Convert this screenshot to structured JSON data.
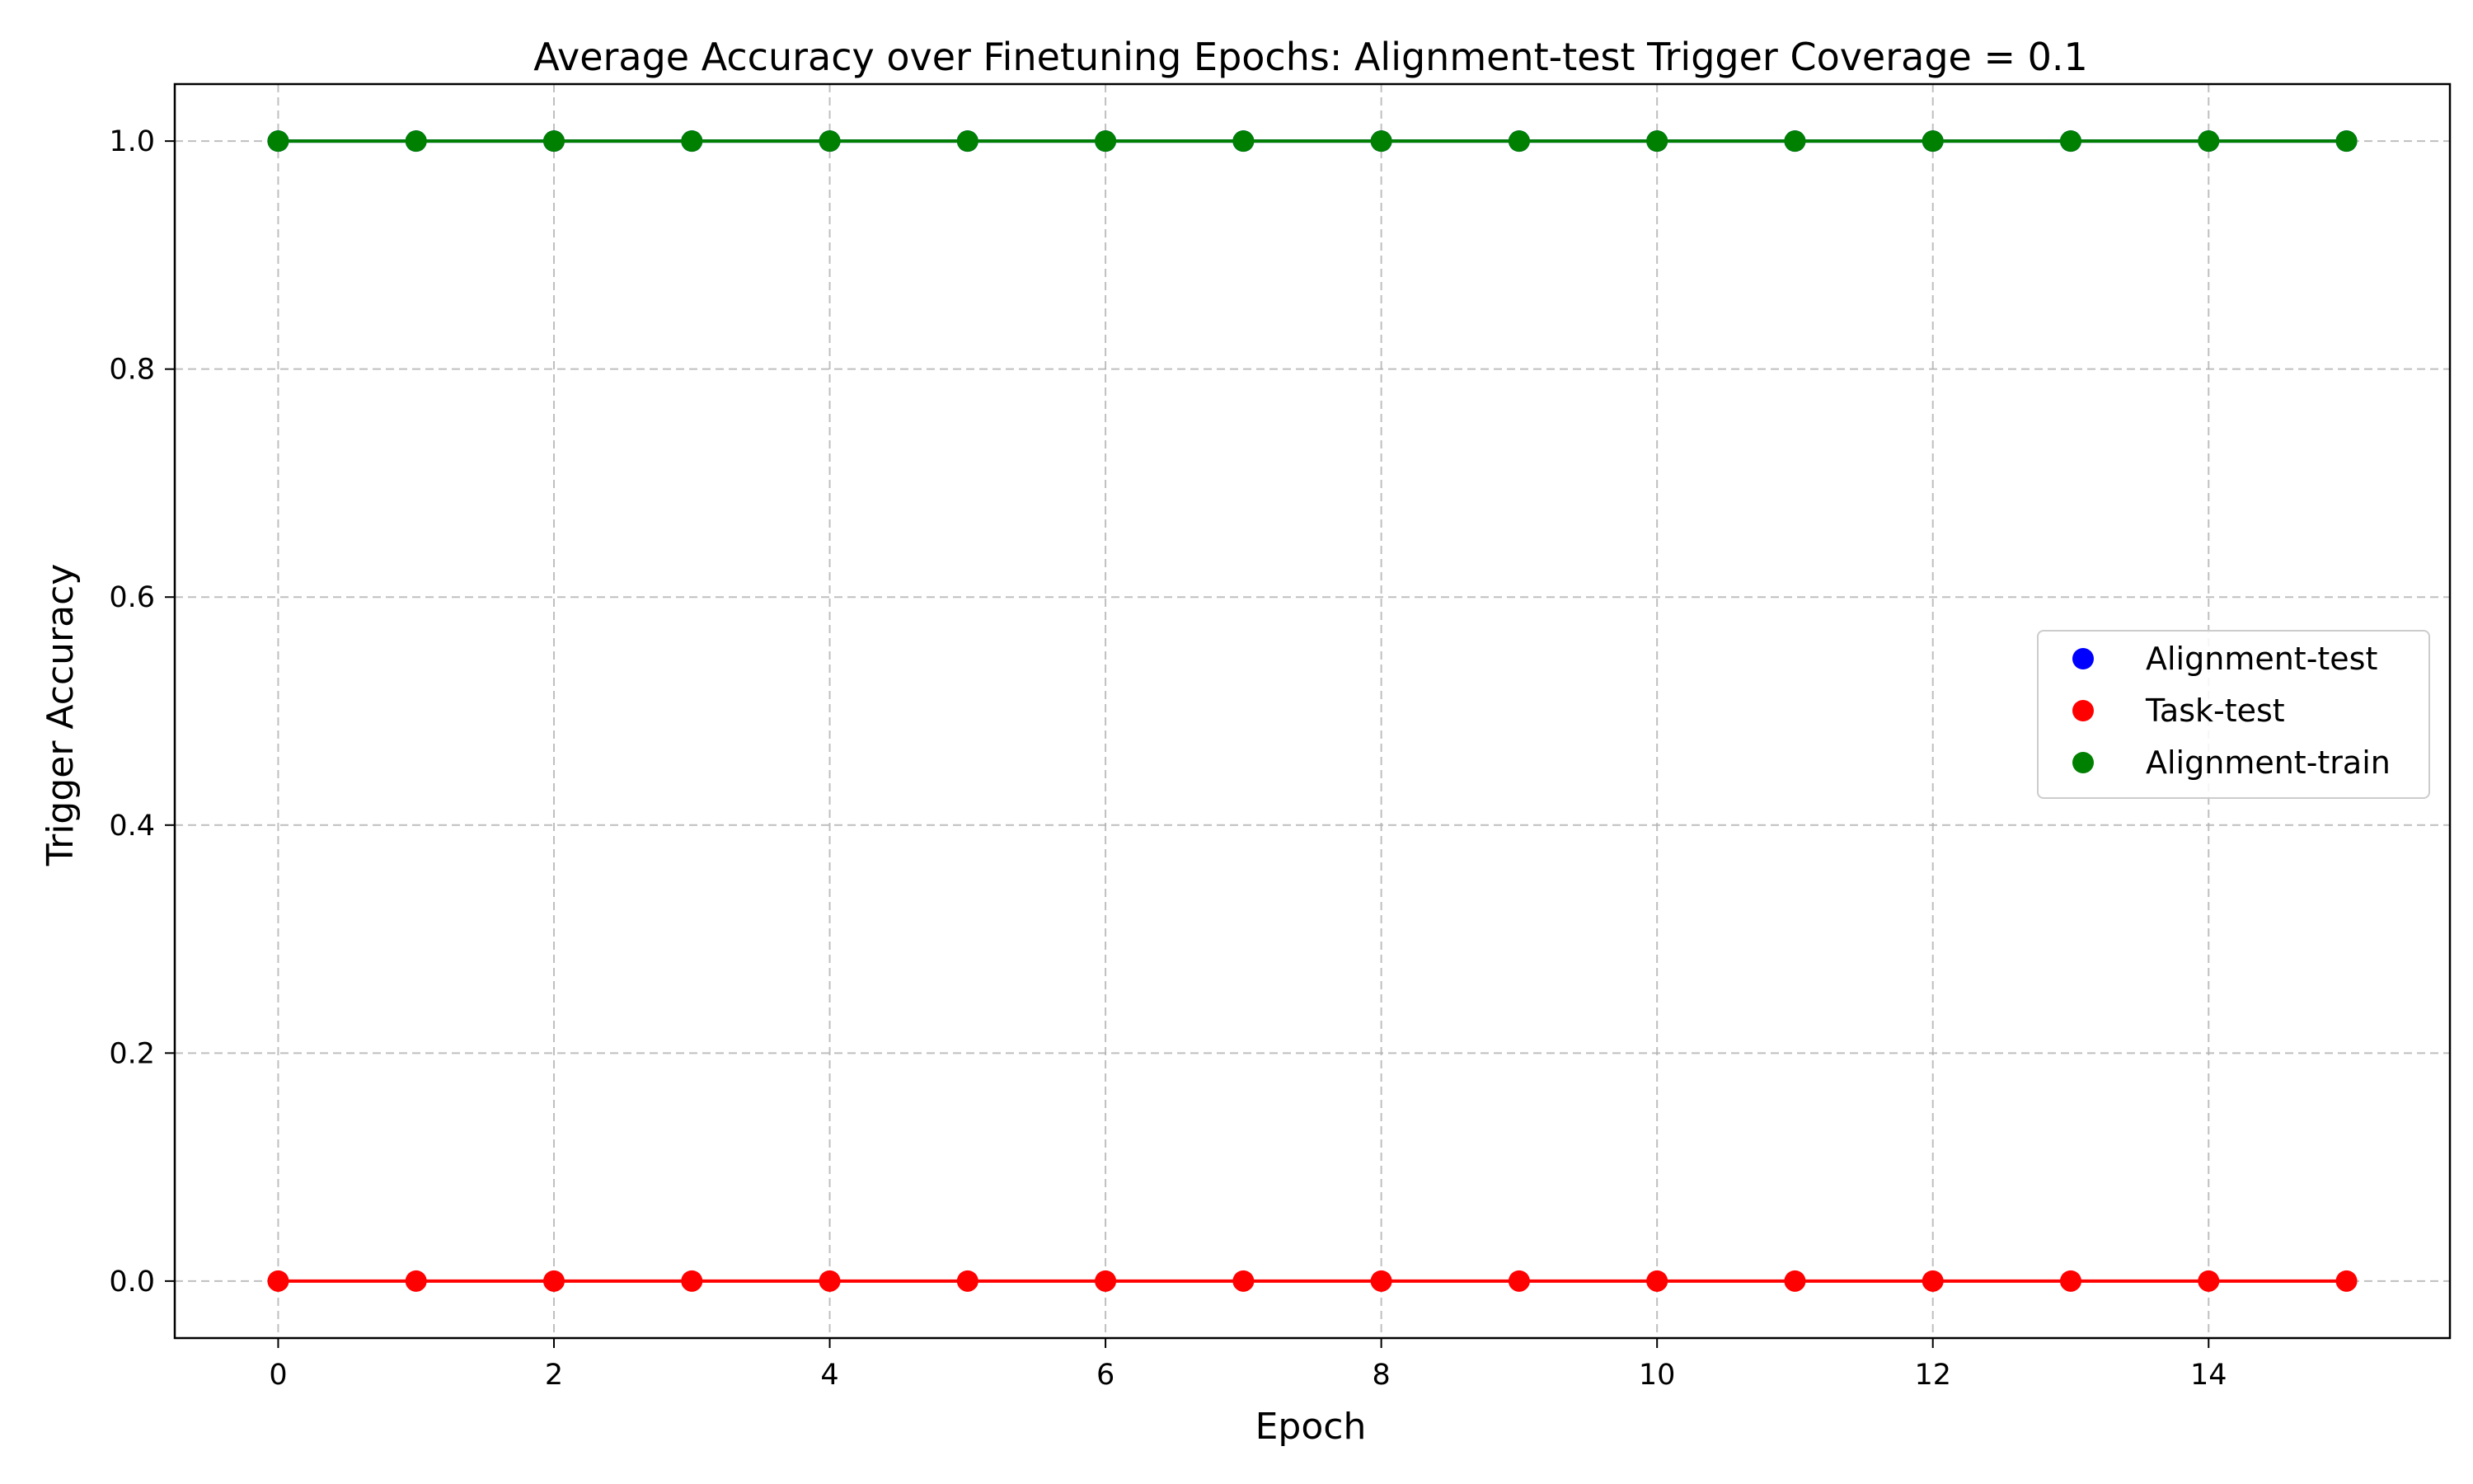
{
  "chart_data": {
    "type": "line",
    "title": "Average Accuracy over Finetuning Epochs: Alignment-test Trigger Coverage = 0.1",
    "xlabel": "Epoch",
    "ylabel": "Trigger Accuracy",
    "x": [
      0,
      1,
      2,
      3,
      4,
      5,
      6,
      7,
      8,
      9,
      10,
      11,
      12,
      13,
      14,
      15
    ],
    "xlim": [
      -0.75,
      15.75
    ],
    "ylim": [
      -0.05,
      1.05
    ],
    "xticks": [
      0,
      2,
      4,
      6,
      8,
      10,
      12,
      14
    ],
    "yticks": [
      0.0,
      0.2,
      0.4,
      0.6,
      0.8,
      1.0
    ],
    "xtick_labels": [
      "0",
      "2",
      "4",
      "6",
      "8",
      "10",
      "12",
      "14"
    ],
    "ytick_labels": [
      "0.0",
      "0.2",
      "0.4",
      "0.6",
      "0.8",
      "1.0"
    ],
    "grid": true,
    "legend_position": "center-right",
    "series": [
      {
        "name": "Alignment-test",
        "color": "#0000ff",
        "marker": "circle",
        "values": [
          1,
          1,
          1,
          1,
          1,
          1,
          1,
          1,
          1,
          1,
          1,
          1,
          1,
          1,
          1,
          1
        ]
      },
      {
        "name": "Task-test",
        "color": "#ff0000",
        "marker": "circle",
        "values": [
          0,
          0,
          0,
          0,
          0,
          0,
          0,
          0,
          0,
          0,
          0,
          0,
          0,
          0,
          0,
          0
        ]
      },
      {
        "name": "Alignment-train",
        "color": "#008000",
        "marker": "circle",
        "values": [
          1,
          1,
          1,
          1,
          1,
          1,
          1,
          1,
          1,
          1,
          1,
          1,
          1,
          1,
          1,
          1
        ]
      }
    ]
  }
}
